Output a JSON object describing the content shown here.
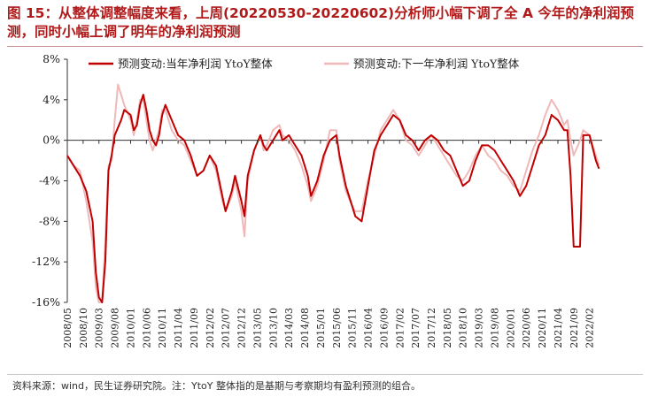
{
  "header": {
    "title": "图 15：从整体调整幅度来看，上周(20220530-20220602)分析师小幅下调了全 A 今年的净利润预测，同时小幅上调了明年的净利润预测"
  },
  "footer": {
    "source": "资料来源：wind，民生证券研究院。注：YtoY 整体指的是基期与考察期均有盈利预测的组合。"
  },
  "chart_data": {
    "type": "line",
    "title": "",
    "xlabel": "",
    "ylabel": "",
    "ylim": [
      -16,
      8
    ],
    "y_ticks": [
      8,
      4,
      0,
      -4,
      -8,
      -12,
      -16
    ],
    "y_tick_labels": [
      "8%",
      "4%",
      "0%",
      "-4%",
      "-8%",
      "-12%",
      "-16%"
    ],
    "y_unit": "%",
    "x_ticks": [
      "2008/05",
      "2008/10",
      "2009/03",
      "2009/08",
      "2010/01",
      "2010/06",
      "2010/11",
      "2011/04",
      "2011/09",
      "2012/02",
      "2012/07",
      "2012/12",
      "2013/05",
      "2013/10",
      "2014/03",
      "2014/08",
      "2015/01",
      "2015/06",
      "2015/11",
      "2016/04",
      "2016/09",
      "2017/02",
      "2017/07",
      "2017/12",
      "2018/05",
      "2018/10",
      "2019/03",
      "2019/08",
      "2020/01",
      "2020/06",
      "2020/11",
      "2021/04",
      "2021/09",
      "2022/02"
    ],
    "grid": false,
    "legend_position": "top",
    "series": [
      {
        "name": "预测变动:当年净利润 YtoY整体",
        "color": "#c00000",
        "points": [
          [
            "2008/05",
            -1.5
          ],
          [
            "2008/07",
            -2.5
          ],
          [
            "2008/09",
            -3.5
          ],
          [
            "2008/11",
            -5.0
          ],
          [
            "2009/01",
            -8.0
          ],
          [
            "2009/02",
            -13.0
          ],
          [
            "2009/03",
            -15.5
          ],
          [
            "2009/04",
            -16.0
          ],
          [
            "2009/05",
            -12.0
          ],
          [
            "2009/06",
            -3.0
          ],
          [
            "2009/07",
            -1.5
          ],
          [
            "2009/08",
            0.5
          ],
          [
            "2009/10",
            2.0
          ],
          [
            "2009/11",
            3.0
          ],
          [
            "2010/01",
            2.5
          ],
          [
            "2010/02",
            1.0
          ],
          [
            "2010/03",
            1.5
          ],
          [
            "2010/04",
            3.5
          ],
          [
            "2010/05",
            4.5
          ],
          [
            "2010/06",
            3.0
          ],
          [
            "2010/07",
            1.0
          ],
          [
            "2010/08",
            0.0
          ],
          [
            "2010/09",
            -0.5
          ],
          [
            "2010/10",
            0.5
          ],
          [
            "2010/11",
            2.5
          ],
          [
            "2010/12",
            3.5
          ],
          [
            "2011/02",
            2.0
          ],
          [
            "2011/04",
            0.5
          ],
          [
            "2011/06",
            0.0
          ],
          [
            "2011/08",
            -1.5
          ],
          [
            "2011/10",
            -3.5
          ],
          [
            "2011/12",
            -3.0
          ],
          [
            "2012/02",
            -1.5
          ],
          [
            "2012/04",
            -2.5
          ],
          [
            "2012/06",
            -5.5
          ],
          [
            "2012/07",
            -7.0
          ],
          [
            "2012/09",
            -5.0
          ],
          [
            "2012/10",
            -3.5
          ],
          [
            "2012/12",
            -6.0
          ],
          [
            "2013/01",
            -7.5
          ],
          [
            "2013/02",
            -3.5
          ],
          [
            "2013/04",
            -1.0
          ],
          [
            "2013/06",
            0.5
          ],
          [
            "2013/07",
            -0.5
          ],
          [
            "2013/08",
            -1.0
          ],
          [
            "2013/10",
            0.0
          ],
          [
            "2013/12",
            1.0
          ],
          [
            "2014/01",
            0.0
          ],
          [
            "2014/03",
            0.5
          ],
          [
            "2014/05",
            -0.5
          ],
          [
            "2014/07",
            -1.5
          ],
          [
            "2014/09",
            -3.5
          ],
          [
            "2014/10",
            -5.5
          ],
          [
            "2014/12",
            -4.0
          ],
          [
            "2015/02",
            -1.5
          ],
          [
            "2015/04",
            0.0
          ],
          [
            "2015/06",
            0.5
          ],
          [
            "2015/07",
            -1.5
          ],
          [
            "2015/09",
            -4.5
          ],
          [
            "2015/11",
            -6.5
          ],
          [
            "2015/12",
            -7.5
          ],
          [
            "2016/02",
            -8.0
          ],
          [
            "2016/04",
            -4.5
          ],
          [
            "2016/06",
            -1.0
          ],
          [
            "2016/08",
            0.5
          ],
          [
            "2016/10",
            1.5
          ],
          [
            "2016/12",
            2.5
          ],
          [
            "2017/02",
            2.0
          ],
          [
            "2017/04",
            0.5
          ],
          [
            "2017/06",
            0.0
          ],
          [
            "2017/08",
            -1.0
          ],
          [
            "2017/10",
            0.0
          ],
          [
            "2017/12",
            0.5
          ],
          [
            "2018/02",
            0.0
          ],
          [
            "2018/04",
            -1.0
          ],
          [
            "2018/06",
            -1.5
          ],
          [
            "2018/08",
            -3.0
          ],
          [
            "2018/10",
            -4.5
          ],
          [
            "2018/12",
            -4.0
          ],
          [
            "2019/02",
            -2.0
          ],
          [
            "2019/04",
            -0.5
          ],
          [
            "2019/06",
            -0.5
          ],
          [
            "2019/08",
            -1.0
          ],
          [
            "2019/10",
            -2.0
          ],
          [
            "2019/12",
            -3.0
          ],
          [
            "2020/02",
            -4.0
          ],
          [
            "2020/04",
            -5.5
          ],
          [
            "2020/06",
            -4.5
          ],
          [
            "2020/08",
            -2.5
          ],
          [
            "2020/10",
            -0.5
          ],
          [
            "2020/12",
            0.5
          ],
          [
            "2021/02",
            2.5
          ],
          [
            "2021/04",
            2.0
          ],
          [
            "2021/06",
            1.0
          ],
          [
            "2021/07",
            1.0
          ],
          [
            "2021/08",
            -3.5
          ],
          [
            "2021/09",
            -10.5
          ],
          [
            "2021/11",
            -10.5
          ],
          [
            "2021/12",
            0.5
          ],
          [
            "2022/02",
            0.5
          ],
          [
            "2022/04",
            -2.0
          ],
          [
            "2022/05",
            -2.8
          ]
        ]
      },
      {
        "name": "预测变动:下一年净利润 YtoY整体",
        "color": "#f0b8b8",
        "points": [
          [
            "2008/05",
            -1.5
          ],
          [
            "2008/07",
            -2.5
          ],
          [
            "2008/09",
            -3.0
          ],
          [
            "2008/11",
            -6.0
          ],
          [
            "2009/01",
            -10.0
          ],
          [
            "2009/02",
            -14.5
          ],
          [
            "2009/03",
            -16.0
          ],
          [
            "2009/04",
            -16.0
          ],
          [
            "2009/05",
            -10.0
          ],
          [
            "2009/06",
            -2.5
          ],
          [
            "2009/07",
            -2.0
          ],
          [
            "2009/08",
            2.0
          ],
          [
            "2009/09",
            5.5
          ],
          [
            "2009/11",
            3.5
          ],
          [
            "2010/01",
            2.0
          ],
          [
            "2010/02",
            0.5
          ],
          [
            "2010/03",
            2.0
          ],
          [
            "2010/04",
            4.0
          ],
          [
            "2010/05",
            4.0
          ],
          [
            "2010/06",
            2.0
          ],
          [
            "2010/07",
            0.0
          ],
          [
            "2010/08",
            -1.0
          ],
          [
            "2010/09",
            0.0
          ],
          [
            "2010/10",
            1.0
          ],
          [
            "2010/11",
            3.0
          ],
          [
            "2010/12",
            3.0
          ],
          [
            "2011/02",
            1.0
          ],
          [
            "2011/04",
            0.0
          ],
          [
            "2011/06",
            -0.5
          ],
          [
            "2011/08",
            -2.0
          ],
          [
            "2011/10",
            -3.5
          ],
          [
            "2011/12",
            -3.0
          ],
          [
            "2012/02",
            -1.5
          ],
          [
            "2012/04",
            -3.0
          ],
          [
            "2012/06",
            -6.0
          ],
          [
            "2012/07",
            -7.0
          ],
          [
            "2012/09",
            -5.5
          ],
          [
            "2012/10",
            -4.0
          ],
          [
            "2012/12",
            -7.0
          ],
          [
            "2013/01",
            -9.5
          ],
          [
            "2013/02",
            -4.0
          ],
          [
            "2013/04",
            -1.0
          ],
          [
            "2013/06",
            0.5
          ],
          [
            "2013/07",
            -1.0
          ],
          [
            "2013/08",
            -0.5
          ],
          [
            "2013/10",
            1.0
          ],
          [
            "2013/12",
            1.5
          ],
          [
            "2014/01",
            0.5
          ],
          [
            "2014/03",
            0.0
          ],
          [
            "2014/05",
            -1.0
          ],
          [
            "2014/07",
            -2.5
          ],
          [
            "2014/09",
            -4.5
          ],
          [
            "2014/10",
            -6.0
          ],
          [
            "2014/12",
            -4.5
          ],
          [
            "2015/02",
            -2.0
          ],
          [
            "2015/04",
            1.0
          ],
          [
            "2015/06",
            1.0
          ],
          [
            "2015/07",
            -2.0
          ],
          [
            "2015/09",
            -5.0
          ],
          [
            "2015/11",
            -6.5
          ],
          [
            "2015/12",
            -7.0
          ],
          [
            "2016/02",
            -7.0
          ],
          [
            "2016/04",
            -4.0
          ],
          [
            "2016/06",
            -1.5
          ],
          [
            "2016/08",
            1.0
          ],
          [
            "2016/10",
            2.0
          ],
          [
            "2016/12",
            3.0
          ],
          [
            "2017/02",
            2.0
          ],
          [
            "2017/04",
            0.0
          ],
          [
            "2017/06",
            -0.5
          ],
          [
            "2017/08",
            -1.5
          ],
          [
            "2017/10",
            -0.5
          ],
          [
            "2017/12",
            0.5
          ],
          [
            "2018/02",
            -0.5
          ],
          [
            "2018/04",
            -1.5
          ],
          [
            "2018/06",
            -2.5
          ],
          [
            "2018/08",
            -3.5
          ],
          [
            "2018/10",
            -4.0
          ],
          [
            "2018/12",
            -3.0
          ],
          [
            "2019/02",
            -1.5
          ],
          [
            "2019/04",
            -0.5
          ],
          [
            "2019/06",
            -1.5
          ],
          [
            "2019/08",
            -2.0
          ],
          [
            "2019/10",
            -3.0
          ],
          [
            "2019/12",
            -3.5
          ],
          [
            "2020/02",
            -4.5
          ],
          [
            "2020/04",
            -5.0
          ],
          [
            "2020/06",
            -3.0
          ],
          [
            "2020/08",
            -1.0
          ],
          [
            "2020/10",
            0.5
          ],
          [
            "2020/12",
            2.5
          ],
          [
            "2021/02",
            4.0
          ],
          [
            "2021/04",
            3.0
          ],
          [
            "2021/06",
            1.5
          ],
          [
            "2021/07",
            2.0
          ],
          [
            "2021/08",
            0.0
          ],
          [
            "2021/09",
            -1.5
          ],
          [
            "2021/11",
            0.0
          ],
          [
            "2021/12",
            1.0
          ],
          [
            "2022/02",
            0.5
          ],
          [
            "2022/04",
            -1.5
          ],
          [
            "2022/05",
            -2.5
          ]
        ]
      }
    ]
  }
}
